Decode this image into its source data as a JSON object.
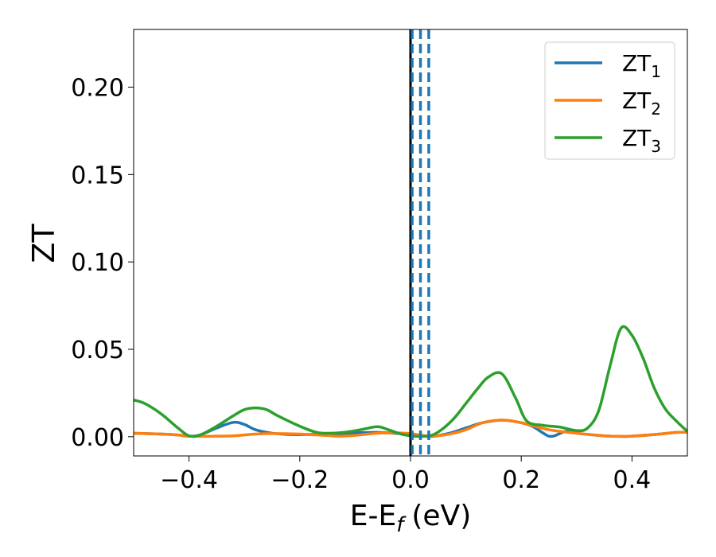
{
  "chart_data": {
    "type": "line",
    "xlabel": "E-E",
    "xlabel_sub": "f",
    "xlabel_unit": "(eV)",
    "ylabel": "ZT",
    "xlim": [
      -0.5,
      0.5
    ],
    "ylim": [
      -0.011,
      0.233
    ],
    "x_ticks": [
      -0.4,
      -0.2,
      0.0,
      0.2,
      0.4
    ],
    "x_tick_labels": [
      "−0.4",
      "−0.2",
      "0.0",
      "0.2",
      "0.4"
    ],
    "y_ticks": [
      0.0,
      0.05,
      0.1,
      0.15,
      0.2
    ],
    "y_tick_labels": [
      "0.00",
      "0.05",
      "0.10",
      "0.15",
      "0.20"
    ],
    "grid": false,
    "legend_position": "top-right",
    "series": [
      {
        "name": "ZT",
        "name_sub": "1",
        "color": "#1f77b4",
        "x": [
          -0.5,
          -0.45,
          -0.42,
          -0.4,
          -0.38,
          -0.35,
          -0.32,
          -0.3,
          -0.28,
          -0.25,
          -0.22,
          -0.2,
          -0.15,
          -0.1,
          -0.06,
          -0.03,
          0.0,
          0.02,
          0.04,
          0.07,
          0.1,
          0.13,
          0.165,
          0.2,
          0.22,
          0.24,
          0.25,
          0.26,
          0.28,
          0.3,
          0.35,
          0.38,
          0.4,
          0.45,
          0.48,
          0.5
        ],
        "y": [
          0.002,
          0.0015,
          0.001,
          0.0003,
          0.001,
          0.005,
          0.0082,
          0.007,
          0.004,
          0.002,
          0.0013,
          0.0012,
          0.0015,
          0.0022,
          0.0025,
          0.002,
          0.0015,
          0.0005,
          0.0002,
          0.002,
          0.005,
          0.008,
          0.0095,
          0.008,
          0.006,
          0.002,
          0.0003,
          0.0005,
          0.003,
          0.002,
          0.0005,
          0.0002,
          0.0003,
          0.0015,
          0.0025,
          0.0025
        ]
      },
      {
        "name": "ZT",
        "name_sub": "2",
        "color": "#ff7f0e",
        "x": [
          -0.5,
          -0.45,
          -0.42,
          -0.4,
          -0.38,
          -0.35,
          -0.32,
          -0.3,
          -0.28,
          -0.25,
          -0.2,
          -0.15,
          -0.13,
          -0.1,
          -0.06,
          -0.03,
          0.0,
          0.02,
          0.04,
          0.07,
          0.1,
          0.13,
          0.165,
          0.2,
          0.25,
          0.3,
          0.35,
          0.38,
          0.4,
          0.45,
          0.48,
          0.5
        ],
        "y": [
          0.002,
          0.0015,
          0.001,
          0.0003,
          0.0002,
          0.0003,
          0.0005,
          0.001,
          0.0015,
          0.0018,
          0.0015,
          0.0007,
          0.0003,
          0.0008,
          0.002,
          0.0022,
          0.0018,
          0.0008,
          0.0003,
          0.0015,
          0.004,
          0.008,
          0.0095,
          0.008,
          0.004,
          0.002,
          0.0005,
          0.0002,
          0.0003,
          0.0015,
          0.0025,
          0.0025
        ]
      },
      {
        "name": "ZT",
        "name_sub": "3",
        "color": "#2ca02c",
        "x": [
          -0.5,
          -0.48,
          -0.45,
          -0.42,
          -0.4,
          -0.38,
          -0.35,
          -0.32,
          -0.3,
          -0.28,
          -0.26,
          -0.24,
          -0.2,
          -0.17,
          -0.15,
          -0.12,
          -0.09,
          -0.06,
          -0.04,
          -0.02,
          0.0,
          0.02,
          0.04,
          0.06,
          0.08,
          0.1,
          0.12,
          0.14,
          0.165,
          0.19,
          0.21,
          0.24,
          0.27,
          0.3,
          0.32,
          0.34,
          0.36,
          0.38,
          0.4,
          0.42,
          0.44,
          0.46,
          0.48,
          0.5
        ],
        "y": [
          0.021,
          0.019,
          0.013,
          0.005,
          0.0005,
          0.001,
          0.006,
          0.012,
          0.0155,
          0.0165,
          0.0155,
          0.012,
          0.006,
          0.0025,
          0.002,
          0.0025,
          0.004,
          0.0057,
          0.004,
          0.0018,
          0.0005,
          0.0002,
          0.001,
          0.005,
          0.011,
          0.019,
          0.027,
          0.034,
          0.036,
          0.022,
          0.009,
          0.0065,
          0.0055,
          0.0035,
          0.005,
          0.015,
          0.04,
          0.062,
          0.058,
          0.045,
          0.028,
          0.016,
          0.009,
          0.003
        ]
      }
    ],
    "vertical_lines": [
      {
        "x": 0.0,
        "color": "#000000",
        "style": "solid"
      },
      {
        "x": 0.003,
        "color": "#1f77b4",
        "style": "dashed"
      },
      {
        "x": 0.018,
        "color": "#1f77b4",
        "style": "dashed"
      },
      {
        "x": 0.033,
        "color": "#1f77b4",
        "style": "dashed"
      }
    ]
  }
}
